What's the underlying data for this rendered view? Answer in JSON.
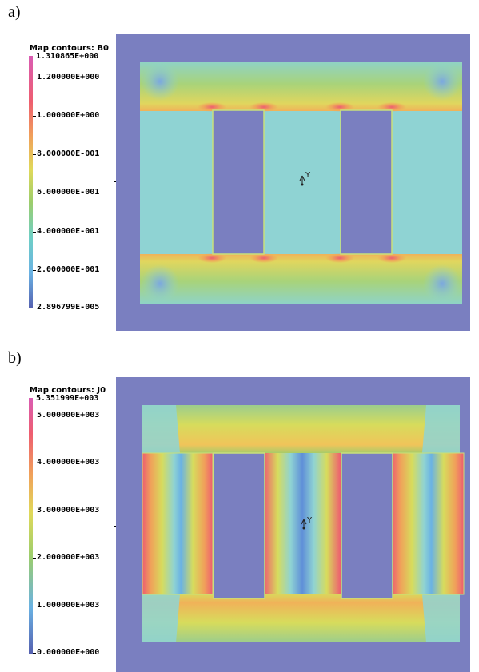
{
  "panels": [
    {
      "id": "a",
      "label": "a)",
      "legend": {
        "title": "Map contours: B0",
        "max": "1.310865E+000",
        "ticks": [
          "1.200000E+000",
          "1.000000E+000",
          "8.000000E-001",
          "6.000000E-001",
          "4.000000E-001",
          "2.000000E-001",
          "2.896799E-005"
        ]
      },
      "triad": "Y"
    },
    {
      "id": "b",
      "label": "b)",
      "legend": {
        "title": "Map contours: J0",
        "max": "5.351999E+003",
        "ticks": [
          "5.000000E+003",
          "4.000000E+003",
          "3.000000E+003",
          "2.000000E+003",
          "1.000000E+003",
          "0.000000E+000"
        ]
      },
      "triad": "Y"
    }
  ],
  "colors": {
    "background": "#7a7fc0",
    "low": "#5560b0",
    "cyan": "#8fd3d3",
    "green": "#9ccd6c",
    "yellow": "#d7dc5c",
    "orange": "#f0b259",
    "red": "#ee5d70",
    "magenta": "#d95cb3"
  }
}
